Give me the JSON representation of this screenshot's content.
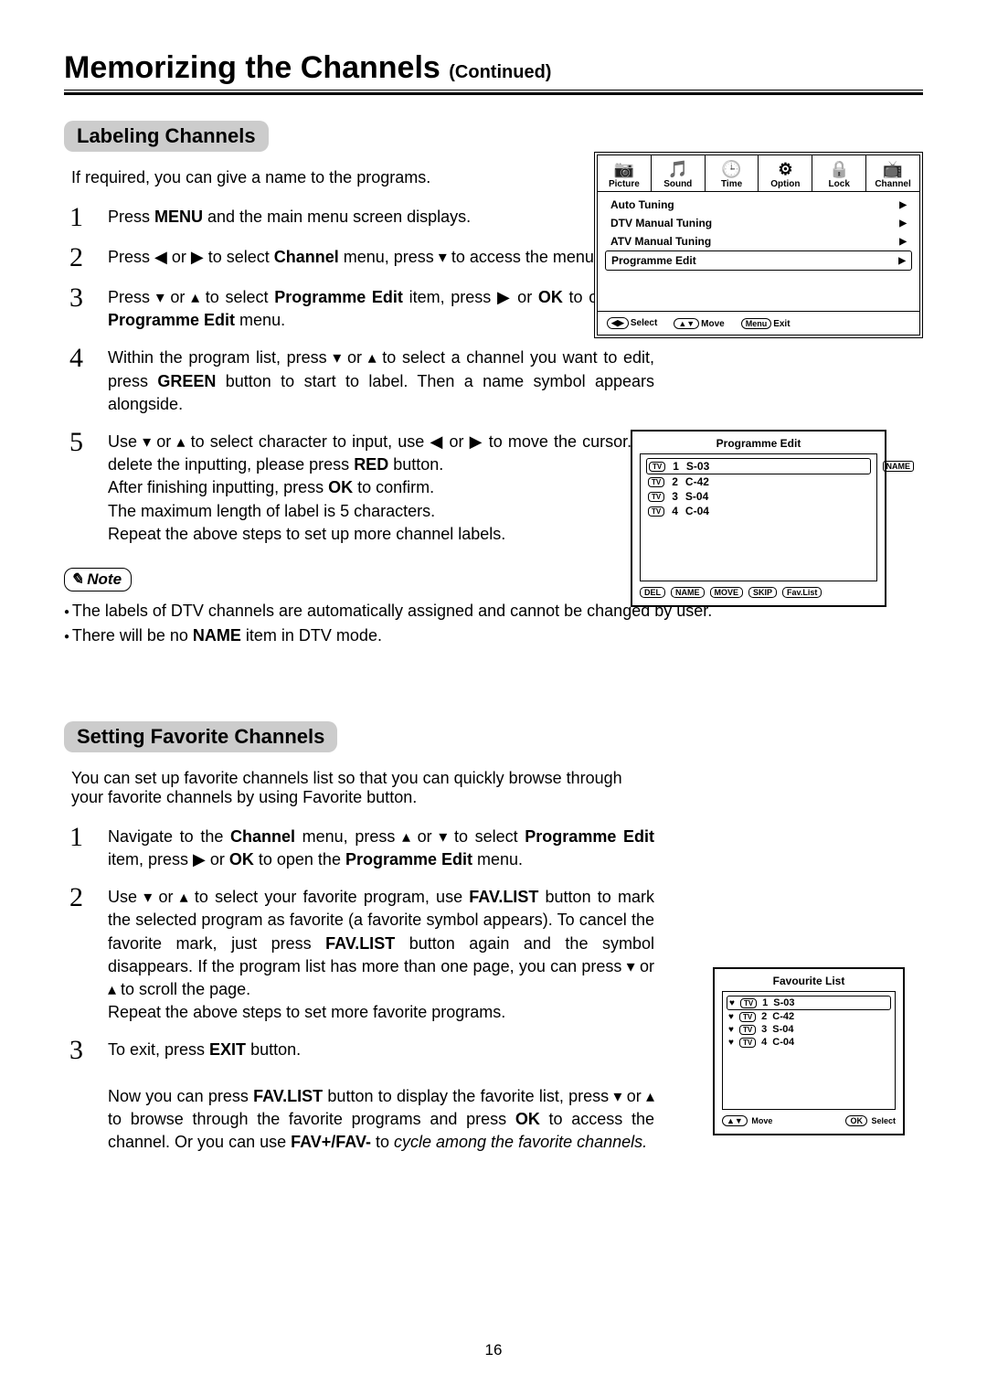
{
  "page": {
    "title_main": "Memorizing the Channels ",
    "title_cont": "(Continued)",
    "number": "16"
  },
  "section1": {
    "heading": "Labeling Channels",
    "intro": "If required, you can give a name to the programs.",
    "steps": [
      {
        "n": "1",
        "html": "Press <b>MENU</b> and the main menu screen displays."
      },
      {
        "n": "2",
        "html": "Press ◀ or ▶ to select <b>Channel</b> menu,  press ▾ to access the menu."
      },
      {
        "n": "3",
        "html": "Press ▾ or ▴ to select <b>Programme Edit</b> item, press ▶ or <b>OK</b> to open the <b>Programme Edit</b> menu."
      },
      {
        "n": "4",
        "html": "Within the program list,  press ▾ or ▴ to select a channel you want to edit, press <b>GREEN</b> button to start to label. Then a name symbol appears alongside."
      },
      {
        "n": "5",
        "html": "Use ▾ or ▴ to select character to input, use ◀ or ▶ to move the cursor. To delete the inputting, please press <b>RED</b> button.<br>After finishing inputting, press <b>OK</b> to confirm.<br>The maximum length of label is 5 characters.<br>Repeat the above steps to set up more channel labels."
      }
    ],
    "note_label": "Note",
    "notes": [
      "The labels of DTV channels are automatically assigned and cannot be changed by user.",
      "There will be no <b>NAME</b> item in DTV mode."
    ]
  },
  "section2": {
    "heading": "Setting Favorite Channels",
    "intro": "You can set up favorite channels list so that you can quickly browse through your favorite channels by using Favorite button.",
    "steps": [
      {
        "n": "1",
        "html": "Navigate to the <b>Channel</b> menu,  press ▴ or ▾ to select <b>Programme Edit</b> item, press ▶ or <b>OK</b> to open the <b>Programme Edit</b> menu."
      },
      {
        "n": "2",
        "html": "Use ▾ or ▴ to select your favorite program, use <b>FAV.LIST</b> button to mark the selected program as favorite (a favorite symbol appears).  To cancel the favorite mark, just press <b>FAV.LIST</b> button again and the symbol disappears. If the program list has more than one page, you can press ▾ or ▴ to scroll the page.<br>Repeat the above steps to set more favorite programs."
      },
      {
        "n": "3",
        "html": "To exit, press <b>EXIT</b> button.<br><br>Now you can press <b>FAV.LIST</b> button to display the favorite list, press ▾ or ▴ to browse through the favorite programs and press <b>OK</b> to access the channel. Or you can use <b>FAV+/FAV-</b> to <i>cycle among the favorite channels.</i>"
      }
    ]
  },
  "osd_channel": {
    "tabs": [
      {
        "label": "Picture",
        "icon": "📷"
      },
      {
        "label": "Sound",
        "icon": "🎵"
      },
      {
        "label": "Time",
        "icon": "🕒"
      },
      {
        "label": "Option",
        "icon": "⚙"
      },
      {
        "label": "Lock",
        "icon": "🔒"
      },
      {
        "label": "Channel",
        "icon": "📺"
      }
    ],
    "items": [
      {
        "label": "Auto Tuning"
      },
      {
        "label": "DTV Manual Tuning"
      },
      {
        "label": "ATV Manual Tuning"
      },
      {
        "label": "Programme Edit",
        "selected": true
      }
    ],
    "footer": {
      "select": "Select",
      "move": "Move",
      "menu_key": "Menu",
      "exit": "Exit"
    }
  },
  "osd_prog": {
    "title": "Programme Edit",
    "rows": [
      {
        "idx": "1",
        "ch": "S-03",
        "selected": true,
        "name_tag": "NAME"
      },
      {
        "idx": "2",
        "ch": "C-42"
      },
      {
        "idx": "3",
        "ch": "S-04"
      },
      {
        "idx": "4",
        "ch": "C-04"
      }
    ],
    "buttons": [
      "DEL",
      "NAME",
      "MOVE",
      "SKIP",
      "Fav.List"
    ]
  },
  "osd_fav": {
    "title": "Favourite List",
    "rows": [
      {
        "idx": "1",
        "ch": "S-03",
        "selected": true
      },
      {
        "idx": "2",
        "ch": "C-42"
      },
      {
        "idx": "3",
        "ch": "S-04"
      },
      {
        "idx": "4",
        "ch": "C-04"
      }
    ],
    "footer": {
      "move": "Move",
      "ok": "OK",
      "select": "Select"
    }
  }
}
